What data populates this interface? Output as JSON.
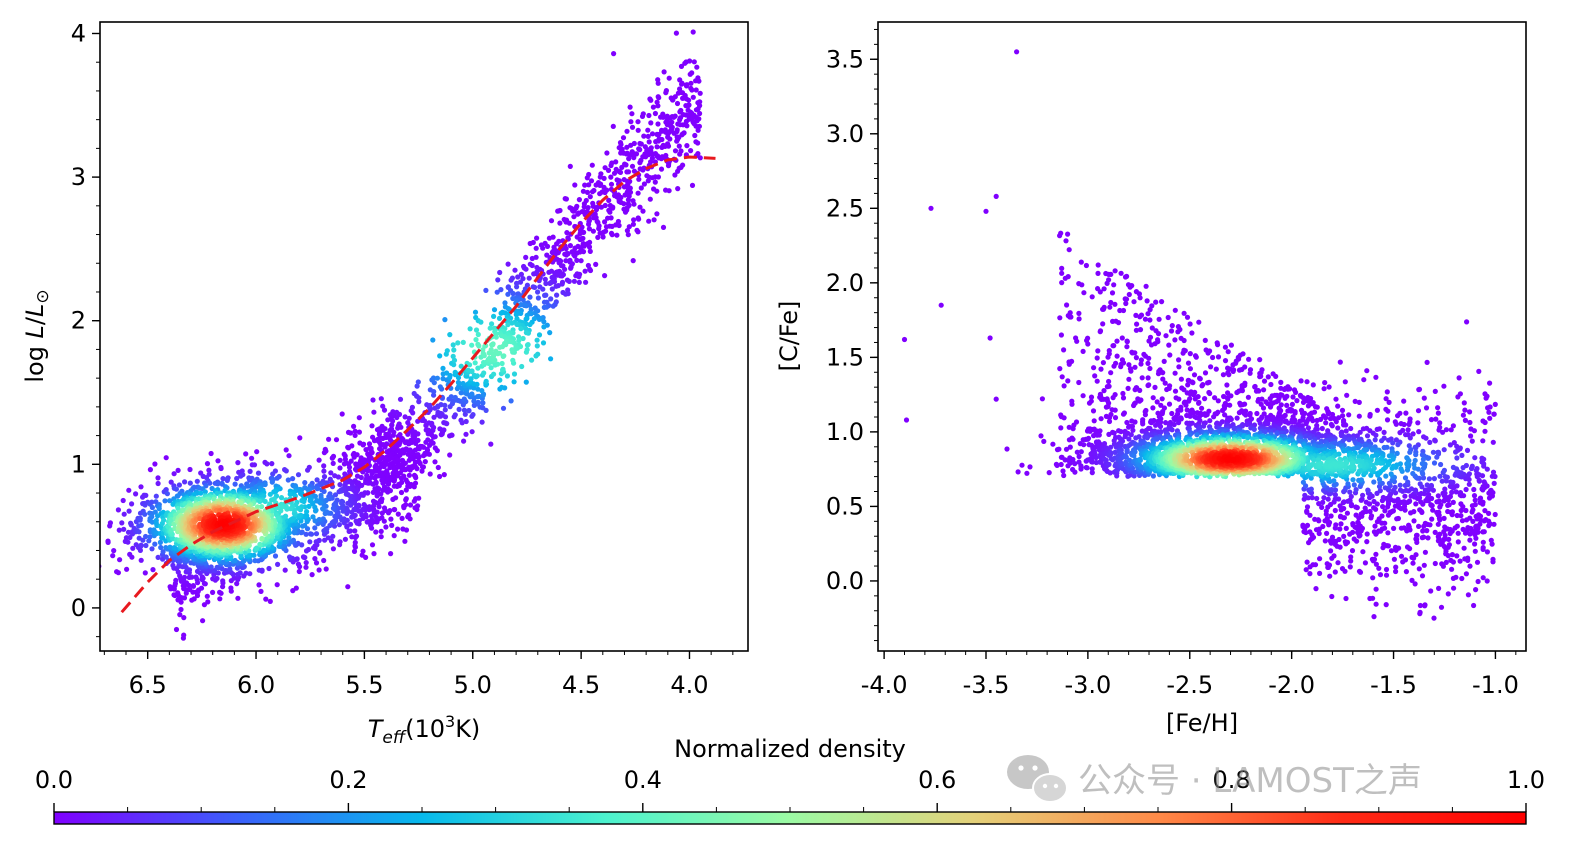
{
  "chart_data": [
    {
      "type": "scatter",
      "panel": "left",
      "xlabel": "T_eff(10^3K)",
      "ylabel": "log L/L⊙",
      "xlim": [
        6.72,
        3.73
      ],
      "ylim": [
        -0.3,
        4.08
      ],
      "x_inverted": true,
      "xticks": [
        6.5,
        6.0,
        5.5,
        5.0,
        4.5,
        4.0
      ],
      "xtick_labels": [
        "6.5",
        "6.0",
        "5.5",
        "5.0",
        "4.5",
        "4.0"
      ],
      "yticks": [
        0,
        1,
        2,
        3,
        4
      ],
      "ytick_labels": [
        "0",
        "1",
        "2",
        "3",
        "4"
      ],
      "grid": false,
      "density_peak": {
        "x": 6.15,
        "y": 0.58
      },
      "ridge": [
        [
          6.55,
          0.2
        ],
        [
          6.3,
          0.42
        ],
        [
          6.1,
          0.62
        ],
        [
          5.9,
          0.72
        ],
        [
          5.6,
          0.85
        ],
        [
          5.3,
          1.1
        ],
        [
          5.0,
          1.6
        ],
        [
          4.7,
          2.2
        ],
        [
          4.4,
          2.8
        ],
        [
          4.1,
          3.3
        ],
        [
          3.95,
          3.5
        ]
      ],
      "fit_line": {
        "style": "dashed",
        "color": "#e8191f",
        "points": [
          [
            6.62,
            -0.03
          ],
          [
            6.5,
            0.18
          ],
          [
            6.4,
            0.33
          ],
          [
            6.3,
            0.44
          ],
          [
            6.2,
            0.53
          ],
          [
            6.1,
            0.6
          ],
          [
            6.0,
            0.67
          ],
          [
            5.9,
            0.72
          ],
          [
            5.8,
            0.77
          ],
          [
            5.7,
            0.83
          ],
          [
            5.6,
            0.89
          ],
          [
            5.5,
            0.98
          ],
          [
            5.4,
            1.1
          ],
          [
            5.3,
            1.24
          ],
          [
            5.2,
            1.39
          ],
          [
            5.1,
            1.56
          ],
          [
            5.0,
            1.74
          ],
          [
            4.9,
            1.92
          ],
          [
            4.8,
            2.1
          ],
          [
            4.7,
            2.3
          ],
          [
            4.6,
            2.5
          ],
          [
            4.5,
            2.68
          ],
          [
            4.4,
            2.84
          ],
          [
            4.3,
            2.97
          ],
          [
            4.2,
            3.06
          ],
          [
            4.1,
            3.12
          ],
          [
            4.0,
            3.14
          ],
          [
            3.88,
            3.13
          ]
        ]
      }
    },
    {
      "type": "scatter",
      "panel": "right",
      "xlabel": "[Fe/H]",
      "ylabel": "[C/Fe]",
      "xlim": [
        -4.03,
        -0.85
      ],
      "ylim": [
        -0.47,
        3.75
      ],
      "xticks": [
        -4.0,
        -3.5,
        -3.0,
        -2.5,
        -2.0,
        -1.5,
        -1.0
      ],
      "xtick_labels": [
        "-4.0",
        "-3.5",
        "-3.0",
        "-2.5",
        "-2.0",
        "-1.5",
        "-1.0"
      ],
      "yticks": [
        0.0,
        0.5,
        1.0,
        1.5,
        2.0,
        2.5,
        3.0,
        3.5
      ],
      "ytick_labels": [
        "0.0",
        "0.5",
        "1.0",
        "1.5",
        "2.0",
        "2.5",
        "3.0",
        "3.5"
      ],
      "grid": false,
      "density_peak": {
        "x": -2.3,
        "y": 0.82
      },
      "lower_cut": 0.7,
      "outliers": [
        [
          -3.35,
          3.55
        ],
        [
          -3.9,
          1.62
        ],
        [
          -3.89,
          1.08
        ],
        [
          -3.77,
          2.5
        ],
        [
          -3.72,
          1.85
        ],
        [
          -3.5,
          2.48
        ],
        [
          -3.45,
          2.58
        ],
        [
          -3.48,
          1.63
        ],
        [
          -3.45,
          1.22
        ]
      ]
    }
  ],
  "colorbar": {
    "label": "Normalized density",
    "ticks": [
      0.0,
      0.2,
      0.4,
      0.6,
      0.8,
      1.0
    ],
    "tick_labels": [
      "0.0",
      "0.2",
      "0.4",
      "0.6",
      "0.8",
      "1.0"
    ],
    "colormap": "rainbow",
    "stops": [
      "#8000ff",
      "#3b60fb",
      "#07b9ec",
      "#4cf2ce",
      "#9cfaa4",
      "#e4d17a",
      "#ff8a48",
      "#ff2b16",
      "#ff0000"
    ]
  },
  "watermark": "公众号 · LAMOST之声"
}
